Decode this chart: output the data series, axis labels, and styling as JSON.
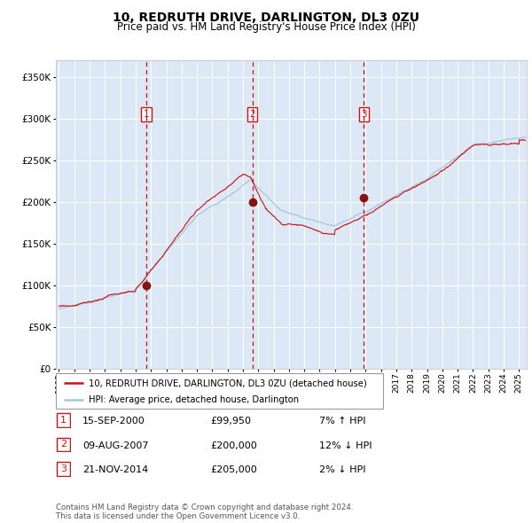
{
  "title": "10, REDRUTH DRIVE, DARLINGTON, DL3 0ZU",
  "subtitle": "Price paid vs. HM Land Registry's House Price Index (HPI)",
  "legend_line1": "10, REDRUTH DRIVE, DARLINGTON, DL3 0ZU (detached house)",
  "legend_line2": "HPI: Average price, detached house, Darlington",
  "transactions": [
    {
      "num": 1,
      "date": "15-SEP-2000",
      "date_num": 2000.71,
      "price": 99950,
      "hpi_rel": "7% ↑ HPI"
    },
    {
      "num": 2,
      "date": "09-AUG-2007",
      "date_num": 2007.61,
      "price": 200000,
      "hpi_rel": "12% ↓ HPI"
    },
    {
      "num": 3,
      "date": "21-NOV-2014",
      "date_num": 2014.89,
      "price": 205000,
      "hpi_rel": "2% ↓ HPI"
    }
  ],
  "footer": "Contains HM Land Registry data © Crown copyright and database right 2024.\nThis data is licensed under the Open Government Licence v3.0.",
  "hpi_color": "#a8c4de",
  "price_color": "#cc1111",
  "dot_color": "#881111",
  "vline_color": "#cc1111",
  "label_box_color": "#cc1111",
  "plot_bg": "#dce8f5",
  "grid_color": "#ffffff",
  "ylim": [
    0,
    370000
  ],
  "yticks": [
    0,
    50000,
    100000,
    150000,
    200000,
    250000,
    300000,
    350000
  ],
  "xlim_start": 1994.8,
  "xlim_end": 2025.5
}
